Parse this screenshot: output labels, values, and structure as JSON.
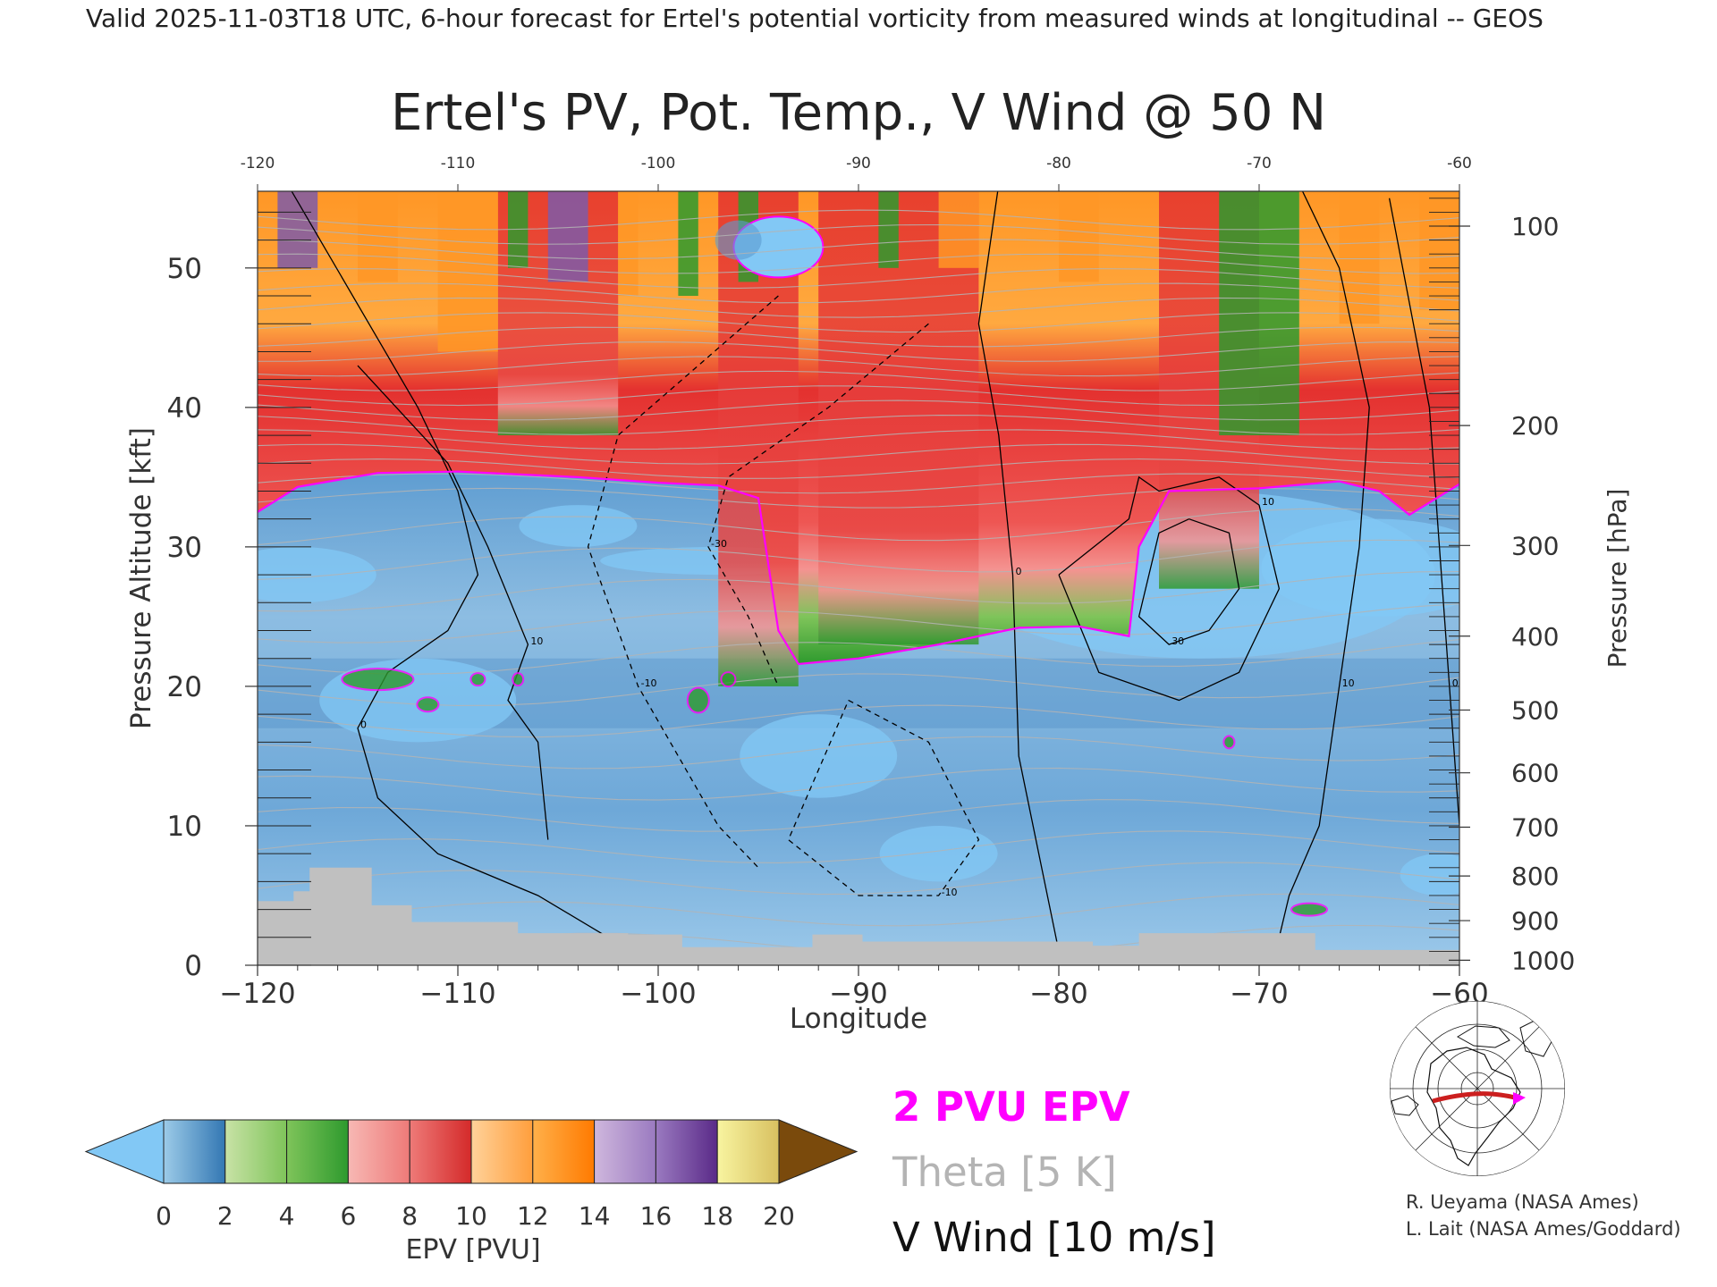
{
  "header_line": "Valid 2025-11-03T18 UTC, 6-hour forecast for Ertel's potential vorticity from measured winds at longitudinal -- GEOS",
  "chart_data": {
    "type": "heatmap",
    "title": "Ertel's PV, Pot. Temp., V Wind @ 50 N",
    "xlabel": "Longitude",
    "ylabel_left": "Pressure Altitude [kft]",
    "ylabel_right": "Pressure [hPa]",
    "xlim": [
      -120,
      -60
    ],
    "ylim_kft": [
      0,
      55.5
    ],
    "x_ticks": [
      -120,
      -110,
      -100,
      -90,
      -80,
      -70,
      -60
    ],
    "x_tick_labels": [
      "−120",
      "−110",
      "−100",
      "−90",
      "−80",
      "−70",
      "−60"
    ],
    "top_x_tick_labels": [
      "-120",
      "-110",
      "-100",
      "-90",
      "-80",
      "-70",
      "-60"
    ],
    "y_ticks_kft": [
      0,
      10,
      20,
      30,
      40,
      50
    ],
    "pressure_ticks": [
      {
        "label": "100",
        "kft": 53.0
      },
      {
        "label": "200",
        "kft": 38.7
      },
      {
        "label": "300",
        "kft": 30.1
      },
      {
        "label": "400",
        "kft": 23.6
      },
      {
        "label": "500",
        "kft": 18.3
      },
      {
        "label": "600",
        "kft": 13.8
      },
      {
        "label": "700",
        "kft": 9.9
      },
      {
        "label": "800",
        "kft": 6.4
      },
      {
        "label": "900",
        "kft": 3.2
      },
      {
        "label": "1000",
        "kft": 0.36
      }
    ],
    "tropopause_2pvu_kft": [
      {
        "lon": -120,
        "kft": 32.5
      },
      {
        "lon": -118,
        "kft": 34.3
      },
      {
        "lon": -114,
        "kft": 35.3
      },
      {
        "lon": -110,
        "kft": 35.4
      },
      {
        "lon": -104,
        "kft": 35.0
      },
      {
        "lon": -100,
        "kft": 34.6
      },
      {
        "lon": -97,
        "kft": 34.4
      },
      {
        "lon": -95,
        "kft": 33.5
      },
      {
        "lon": -94,
        "kft": 24.0
      },
      {
        "lon": -93,
        "kft": 21.6
      },
      {
        "lon": -90,
        "kft": 22.0
      },
      {
        "lon": -86,
        "kft": 23.0
      },
      {
        "lon": -82,
        "kft": 24.2
      },
      {
        "lon": -79,
        "kft": 24.3
      },
      {
        "lon": -76.5,
        "kft": 23.6
      },
      {
        "lon": -76,
        "kft": 30.0
      },
      {
        "lon": -74.5,
        "kft": 34.0
      },
      {
        "lon": -70,
        "kft": 34.2
      },
      {
        "lon": -66,
        "kft": 34.7
      },
      {
        "lon": -64,
        "kft": 34.0
      },
      {
        "lon": -62.5,
        "kft": 32.3
      },
      {
        "lon": -60,
        "kft": 34.5
      }
    ],
    "terrain_kft": [
      {
        "lon": -120,
        "kft": 4.6
      },
      {
        "lon": -118.2,
        "kft": 4.6
      },
      {
        "lon": -118.2,
        "kft": 5.3
      },
      {
        "lon": -117.4,
        "kft": 5.3
      },
      {
        "lon": -117.4,
        "kft": 7.0
      },
      {
        "lon": -114.3,
        "kft": 7.0
      },
      {
        "lon": -114.3,
        "kft": 4.3
      },
      {
        "lon": -112.3,
        "kft": 4.3
      },
      {
        "lon": -112.3,
        "kft": 3.1
      },
      {
        "lon": -107,
        "kft": 3.1
      },
      {
        "lon": -107,
        "kft": 2.3
      },
      {
        "lon": -101.5,
        "kft": 2.3
      },
      {
        "lon": -101.5,
        "kft": 2.2
      },
      {
        "lon": -98.8,
        "kft": 2.2
      },
      {
        "lon": -98.8,
        "kft": 1.3
      },
      {
        "lon": -92.3,
        "kft": 1.3
      },
      {
        "lon": -92.3,
        "kft": 2.2
      },
      {
        "lon": -89.8,
        "kft": 2.2
      },
      {
        "lon": -89.8,
        "kft": 1.7
      },
      {
        "lon": -78.3,
        "kft": 1.7
      },
      {
        "lon": -78.3,
        "kft": 1.4
      },
      {
        "lon": -76,
        "kft": 1.4
      },
      {
        "lon": -76,
        "kft": 2.3
      },
      {
        "lon": -67.2,
        "kft": 2.3
      },
      {
        "lon": -67.2,
        "kft": 1.1
      },
      {
        "lon": -60,
        "kft": 1.1
      }
    ],
    "stratosphere_columns": [
      {
        "lon_from": -108,
        "lon_to": -102,
        "bottom_kft": 38
      },
      {
        "lon_from": -97,
        "lon_to": -93,
        "bottom_kft": 20
      },
      {
        "lon_from": -92,
        "lon_to": -84,
        "bottom_kft": 23
      },
      {
        "lon_from": -75,
        "lon_to": -70,
        "bottom_kft": 27
      }
    ],
    "v_wind_contours": [
      {
        "label": "0",
        "style": "solid",
        "lon": [
          -118.5,
          -112,
          -110,
          -109,
          -110.5,
          -113.5,
          -115,
          -114,
          -111,
          -106,
          -102.5,
          -100
        ],
        "kft": [
          56,
          40,
          34,
          28,
          24,
          21,
          17,
          12,
          8,
          5,
          2,
          0.5
        ]
      },
      {
        "label": "10",
        "style": "solid",
        "lon": [
          -115,
          -110.5,
          -108.5,
          -106.5,
          -107.5,
          -106,
          -105.5
        ],
        "kft": [
          43,
          36,
          30,
          23,
          19,
          16,
          9
        ]
      },
      {
        "label": "-10",
        "style": "dashed",
        "lon": [
          -94,
          -102,
          -103.5,
          -101,
          -97,
          -95
        ],
        "kft": [
          48,
          38,
          30,
          20,
          10,
          7
        ]
      },
      {
        "label": "-30",
        "style": "dashed",
        "lon": [
          -86.5,
          -91.5,
          -96.5,
          -97.5,
          -95.5,
          -94
        ],
        "kft": [
          46,
          40,
          35,
          30,
          25,
          20
        ]
      },
      {
        "label": "-10",
        "style": "dashed",
        "lon": [
          -90.5,
          -86.5,
          -84,
          -86,
          -90,
          -93.5,
          -90.5
        ],
        "kft": [
          19,
          16,
          9,
          5,
          5,
          9,
          19
        ]
      },
      {
        "label": "0",
        "style": "solid",
        "lon": [
          -83,
          -84,
          -83,
          -82.3,
          -82,
          -80
        ],
        "kft": [
          56,
          46,
          38,
          28,
          15,
          1
        ]
      },
      {
        "label": "10",
        "style": "solid",
        "lon": [
          -80,
          -76.5,
          -76,
          -75,
          -72,
          -70,
          -69,
          -71,
          -74,
          -78,
          -80
        ],
        "kft": [
          28,
          32,
          35,
          34,
          35,
          33,
          27,
          21,
          19,
          21,
          28
        ]
      },
      {
        "label": "30",
        "style": "solid",
        "lon": [
          -73.5,
          -71.5,
          -71,
          -72.5,
          -74.5,
          -76,
          -75,
          -73.5
        ],
        "kft": [
          32,
          31,
          27,
          24,
          23,
          25,
          31,
          32
        ]
      },
      {
        "label": "10",
        "style": "solid",
        "lon": [
          -68,
          -66,
          -64.5,
          -65,
          -66,
          -67,
          -68.5,
          -69
        ],
        "kft": [
          56,
          50,
          40,
          30,
          20,
          10,
          5,
          2
        ]
      },
      {
        "label": "0",
        "style": "solid",
        "lon": [
          -63.5,
          -61.5,
          -60.5,
          -60
        ],
        "kft": [
          55,
          40,
          20,
          10
        ]
      }
    ],
    "epv_colorbar": {
      "label": "EPV [PVU]",
      "range": [
        0,
        20
      ],
      "tick_values": [
        0,
        2,
        4,
        6,
        8,
        10,
        12,
        14,
        16,
        18,
        20
      ],
      "tick_labels": [
        "0",
        "2",
        "4",
        "6",
        "8",
        "10",
        "12",
        "14",
        "16",
        "18",
        "20"
      ],
      "under_color": "#82c8f5",
      "over_color": "#7a4a0c",
      "bin_colors": [
        [
          "#9ccbe8",
          "#3377b3"
        ],
        [
          "#c8e2a6",
          "#7fc45a"
        ],
        [
          "#7fc45a",
          "#2e9a2e"
        ],
        [
          "#f7b8b4",
          "#ee7a78"
        ],
        [
          "#ee7a78",
          "#d42a2a"
        ],
        [
          "#ffd29a",
          "#ff9e3c"
        ],
        [
          "#ffb04a",
          "#ff7a00"
        ],
        [
          "#cfb7dd",
          "#9a7ac0"
        ],
        [
          "#9a7ac0",
          "#5a2a88"
        ],
        [
          "#f8f4a0",
          "#d8c060"
        ]
      ]
    },
    "legend": {
      "pv_label": "2 PVU EPV",
      "pv_color": "#ff00ff",
      "theta_label": "Theta [5 K]",
      "theta_color": "#b4b4b4",
      "wind_label": "V Wind [10 m/s]",
      "wind_color": "#000000"
    },
    "field_colors": {
      "troposphere_light": "#a6cce8",
      "troposphere_dark": "#4a8ac4",
      "trop_cyan": "#82c8f5",
      "lower_strat_green": "#2e9a2e",
      "strat_red": "#e4312f",
      "strat_pink": "#f49391",
      "strat_orange": "#ff9726",
      "strat_purple": "#7e5aa8",
      "terrain_gray": "#c0c0c0"
    }
  },
  "locator_map": {
    "icon": "north-america-polar-map-icon",
    "section_color": "#cc1f1f",
    "marker_color": "#ff00ff"
  },
  "credits": {
    "line1": "R. Ueyama (NASA Ames)",
    "line2": "L. Lait (NASA Ames/Goddard)"
  }
}
